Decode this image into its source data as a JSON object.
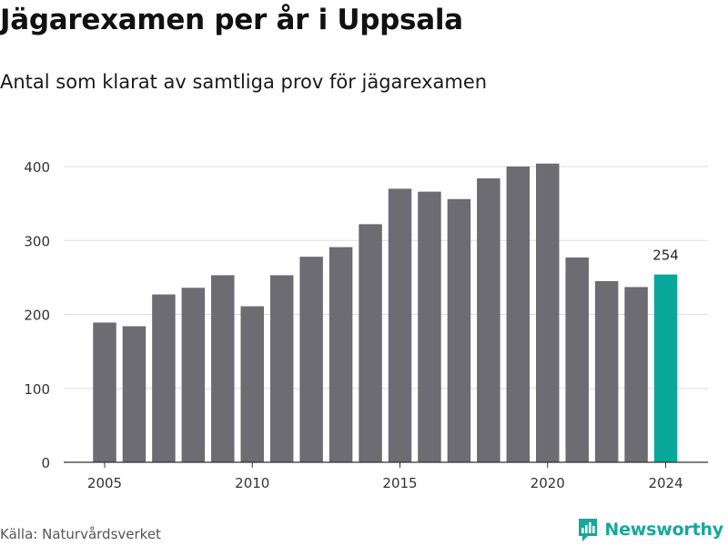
{
  "header": {
    "title": "Jägarexamen per år i Uppsala",
    "subtitle": "Antal som klarat av samtliga prov för jägarexamen"
  },
  "footer": {
    "source": "Källa: Naturvårdsverket",
    "brand": "Newsworthy"
  },
  "colors": {
    "bar": "#6d6c72",
    "highlight": "#0aa89a",
    "grid": "#dddddd",
    "brand": "#17a89a"
  },
  "chart_data": {
    "type": "bar",
    "title": "Jägarexamen per år i Uppsala",
    "subtitle": "Antal som klarat av samtliga prov för jägarexamen",
    "xlabel": "",
    "ylabel": "",
    "x": [
      2005,
      2006,
      2007,
      2008,
      2009,
      2010,
      2011,
      2012,
      2013,
      2014,
      2015,
      2016,
      2017,
      2018,
      2019,
      2020,
      2021,
      2022,
      2023,
      2024
    ],
    "values": [
      189,
      184,
      227,
      236,
      253,
      211,
      253,
      278,
      291,
      322,
      370,
      366,
      356,
      384,
      400,
      404,
      277,
      245,
      237,
      254
    ],
    "highlight": {
      "x": 2024,
      "value": 254,
      "label": "254"
    },
    "ylim": [
      0,
      420
    ],
    "yticks": [
      0,
      100,
      200,
      300,
      400
    ],
    "ytick_labels": [
      "0",
      "100",
      "200",
      "300",
      "400"
    ],
    "xticks": [
      2005,
      2010,
      2015,
      2020,
      2024
    ],
    "xtick_labels": [
      "2005",
      "2010",
      "2015",
      "2020",
      "2024"
    ],
    "grid": true
  }
}
